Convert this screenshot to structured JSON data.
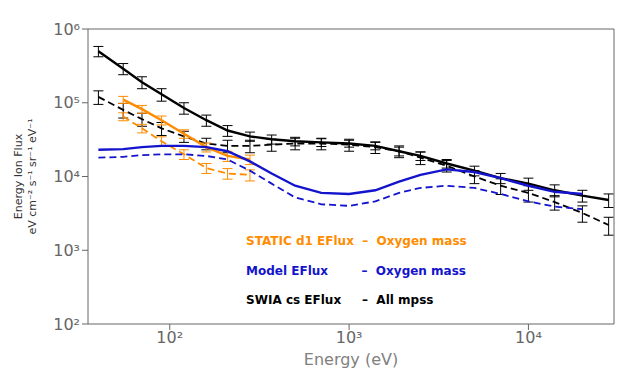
{
  "chart_data": {
    "type": "line",
    "log": true,
    "grid": false,
    "xlabel": "Energy (eV)",
    "ylabel": [
      "Energy Ion Flux",
      "eV cm⁻² s⁻¹ sr⁻¹ eV⁻¹"
    ],
    "xlim": [
      35,
      30000
    ],
    "ylim": [
      100,
      1000000
    ],
    "xticks": [
      {
        "value": 100,
        "label": "10²"
      },
      {
        "value": 1000,
        "label": "10³"
      },
      {
        "value": 10000,
        "label": "10⁴"
      }
    ],
    "yticks": [
      {
        "value": 100,
        "label": "10²"
      },
      {
        "value": 1000,
        "label": "10³"
      },
      {
        "value": 10000,
        "label": "10⁴"
      },
      {
        "value": 100000,
        "label": "10⁵"
      },
      {
        "value": 1000000,
        "label": "10⁶"
      }
    ],
    "annotations": [
      {
        "text": "STATIC d1 EFlux  –  Oxygen mass",
        "color": "#ff8c00"
      },
      {
        "text": "Model EFlux        –  Oxygen mass",
        "color": "#1414cc"
      },
      {
        "text": "SWIA cs EFlux     –  All mpss",
        "color": "#000000"
      }
    ],
    "series": [
      {
        "color": "#000000",
        "line_style": "solid",
        "x": [
          40,
          55,
          70,
          90,
          120,
          160,
          210,
          280,
          370,
          500,
          700,
          1000,
          1400,
          1900,
          2500,
          3500,
          5000,
          7000,
          10000,
          14000,
          20000,
          28000
        ],
        "values": [
          500000,
          290000,
          190000,
          130000,
          85000,
          58000,
          42000,
          35000,
          32000,
          30000,
          29000,
          28000,
          26000,
          22000,
          19000,
          15000,
          12000,
          9500,
          8000,
          6500,
          5500,
          4800
        ],
        "error_lo": [
          80000,
          50000,
          35000,
          25000,
          15000,
          10000,
          7000,
          5000,
          4500,
          4000,
          3500,
          3000,
          3000,
          3000,
          2500,
          2000,
          1800,
          1500,
          1500,
          1200,
          1000,
          1000
        ],
        "error_hi": [
          80000,
          50000,
          35000,
          25000,
          15000,
          10000,
          7000,
          5000,
          4500,
          4000,
          3500,
          3000,
          3000,
          3000,
          2500,
          2000,
          1800,
          1500,
          1500,
          1200,
          1000,
          1000
        ]
      },
      {
        "color": "#000000",
        "line_style": "dashed",
        "x": [
          40,
          55,
          70,
          90,
          120,
          160,
          210,
          280,
          370,
          500,
          700,
          1000,
          1400,
          1900,
          2500,
          3500,
          5000,
          7000,
          10000,
          14000,
          20000,
          28000
        ],
        "values": [
          120000,
          80000,
          60000,
          45000,
          35000,
          28000,
          26000,
          26000,
          27000,
          28000,
          28000,
          27000,
          25000,
          22000,
          18000,
          14000,
          10000,
          7500,
          6000,
          4500,
          3200,
          2200
        ],
        "error_lo": [
          25000,
          18000,
          12000,
          9000,
          6000,
          5000,
          5000,
          5000,
          5000,
          5000,
          5000,
          5000,
          4500,
          4000,
          3500,
          2500,
          2000,
          1800,
          1500,
          1000,
          800,
          600
        ],
        "error_hi": [
          25000,
          18000,
          12000,
          9000,
          6000,
          5000,
          5000,
          5000,
          5000,
          5000,
          5000,
          5000,
          4500,
          4000,
          3500,
          2500,
          2000,
          1800,
          1500,
          1000,
          800,
          600
        ]
      },
      {
        "color": "#ff8c00",
        "line_style": "solid",
        "x": [
          55,
          70,
          90,
          120,
          160,
          210,
          280
        ],
        "values": [
          110000,
          82000,
          58000,
          38000,
          25000,
          19000,
          17000
        ],
        "error_lo": [
          12000,
          10000,
          8000,
          5000,
          3500,
          3000,
          2500
        ],
        "error_hi": [
          12000,
          10000,
          8000,
          5000,
          3500,
          3000,
          2500
        ]
      },
      {
        "color": "#ff8c00",
        "line_style": "dashed",
        "x": [
          55,
          70,
          90,
          120,
          160,
          210,
          280
        ],
        "values": [
          65000,
          45000,
          30000,
          20000,
          13000,
          11000,
          10500
        ],
        "error_lo": [
          8000,
          6000,
          4500,
          3000,
          2000,
          1800,
          1800
        ],
        "error_hi": [
          8000,
          6000,
          4500,
          3000,
          2000,
          1800,
          1800
        ]
      },
      {
        "color": "#1414cc",
        "line_style": "solid",
        "x": [
          40,
          55,
          70,
          90,
          120,
          160,
          210,
          280,
          370,
          500,
          700,
          1000,
          1400,
          1900,
          2500,
          3500,
          5000,
          7000,
          10000,
          14000,
          20000
        ],
        "values": [
          23000,
          23500,
          25000,
          26000,
          26000,
          25000,
          22000,
          16000,
          11000,
          7500,
          6000,
          5800,
          6500,
          8500,
          10500,
          12500,
          11500,
          9500,
          7500,
          6200,
          5800
        ]
      },
      {
        "color": "#1414cc",
        "line_style": "dashed",
        "x": [
          40,
          55,
          70,
          90,
          120,
          160,
          210,
          280,
          370,
          500,
          700,
          1000,
          1400,
          1900,
          2500,
          3500,
          5000,
          7000,
          10000,
          14000,
          20000
        ],
        "values": [
          18000,
          18500,
          19500,
          20000,
          20000,
          19000,
          17000,
          12000,
          8000,
          5200,
          4200,
          4000,
          4600,
          6000,
          7000,
          7500,
          7000,
          5800,
          4600,
          3900,
          3600
        ]
      }
    ]
  }
}
